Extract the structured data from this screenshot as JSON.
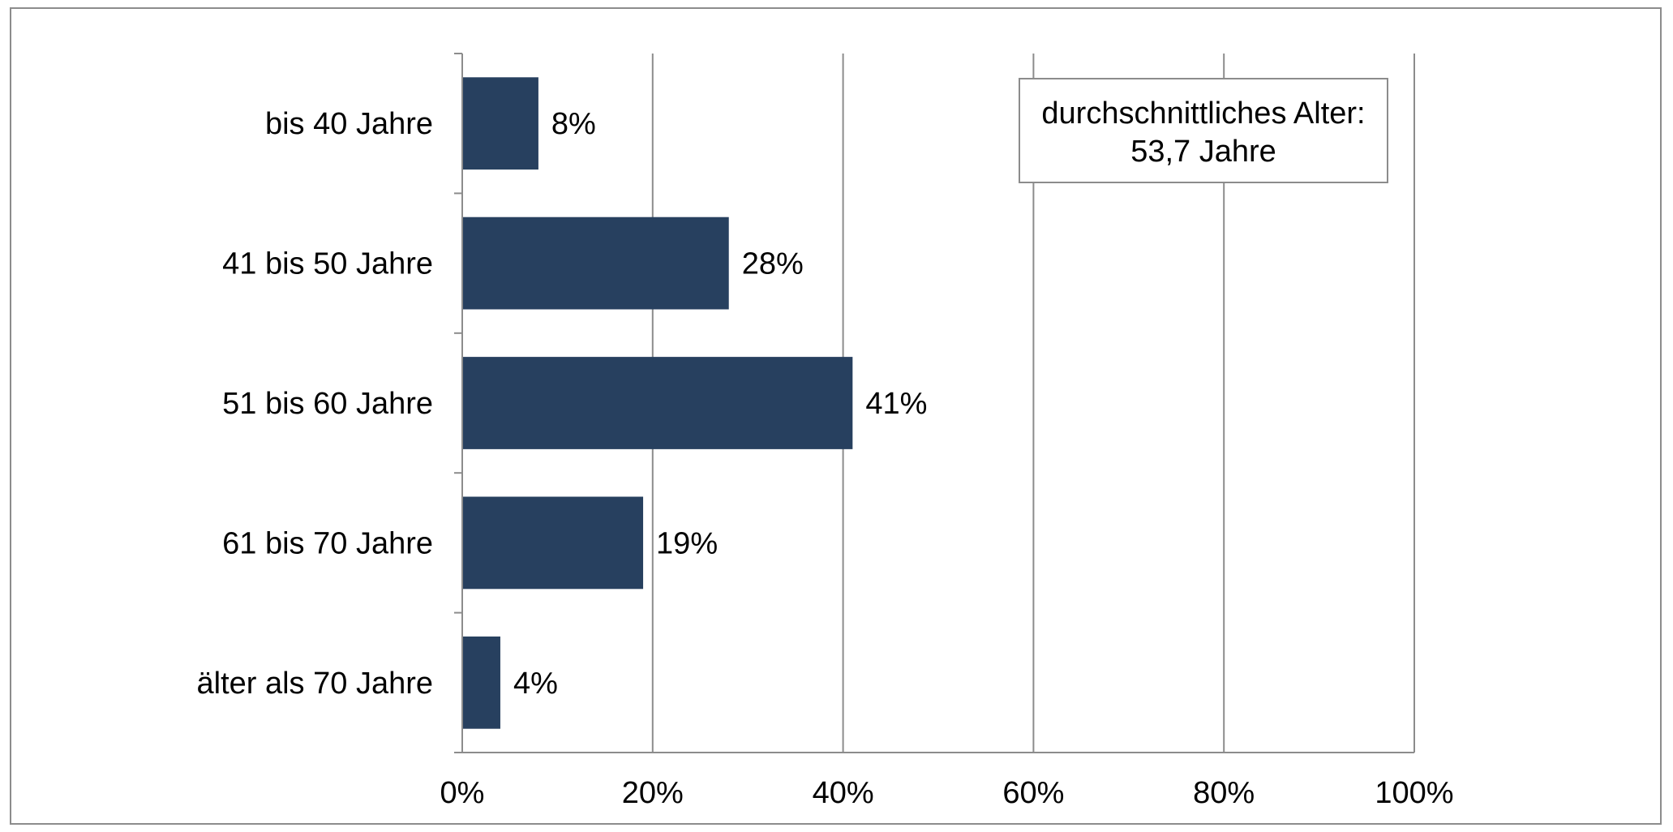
{
  "chart_data": {
    "type": "bar",
    "orientation": "horizontal",
    "categories": [
      "bis 40 Jahre",
      "41 bis 50 Jahre",
      "51 bis 60 Jahre",
      "61 bis 70 Jahre",
      "älter als 70 Jahre"
    ],
    "values": [
      8,
      28,
      41,
      19,
      4
    ],
    "data_labels": [
      "8%",
      "28%",
      "41%",
      "19%",
      "4%"
    ],
    "title": "",
    "xlabel": "",
    "ylabel": "",
    "xlim": [
      0,
      100
    ],
    "x_ticks": [
      0,
      20,
      40,
      60,
      80,
      100
    ],
    "x_tick_labels": [
      "0%",
      "20%",
      "40%",
      "60%",
      "80%",
      "100%"
    ],
    "grid": "vertical",
    "legend": "none",
    "bar_color": "#27405f",
    "annotation": {
      "lines": [
        "durchschnittliches Alter:",
        "53,7 Jahre"
      ],
      "placement": "top-right"
    }
  }
}
